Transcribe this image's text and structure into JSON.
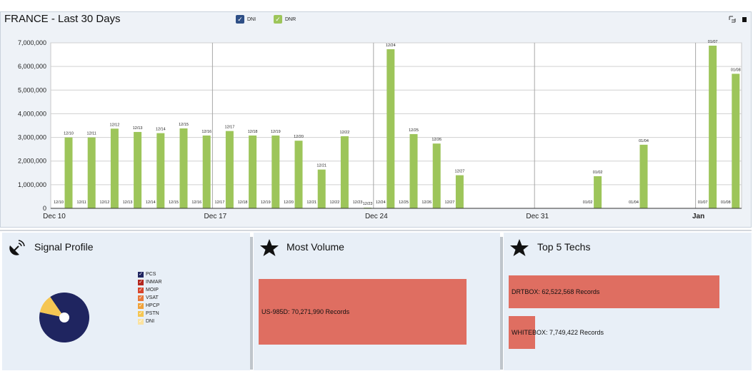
{
  "header": {
    "title": "FRANCE - Last 30 Days",
    "legend": [
      {
        "label": "DNI",
        "color": "#2e4f86",
        "checked": true
      },
      {
        "label": "DNR",
        "color": "#9dc55a",
        "checked": true
      }
    ],
    "tools": [
      {
        "icon": "expand-icon"
      },
      {
        "icon": "stop-icon"
      }
    ]
  },
  "chart_data": {
    "type": "bar",
    "title": "FRANCE - Last 30 Days",
    "series": [
      {
        "name": "DNR",
        "color": "#9dc55a",
        "points": [
          {
            "x": "12/10",
            "y": 3000000
          },
          {
            "x": "12/11",
            "y": 3000000
          },
          {
            "x": "12/12",
            "y": 3370000
          },
          {
            "x": "12/13",
            "y": 3230000
          },
          {
            "x": "12/14",
            "y": 3180000
          },
          {
            "x": "12/15",
            "y": 3380000
          },
          {
            "x": "12/16",
            "y": 3080000
          },
          {
            "x": "12/17",
            "y": 3270000
          },
          {
            "x": "12/18",
            "y": 3080000
          },
          {
            "x": "12/19",
            "y": 3080000
          },
          {
            "x": "12/20",
            "y": 2860000
          },
          {
            "x": "12/21",
            "y": 1640000
          },
          {
            "x": "12/22",
            "y": 3050000
          },
          {
            "x": "12/23",
            "y": 30000
          },
          {
            "x": "12/24",
            "y": 6730000
          },
          {
            "x": "12/25",
            "y": 3140000
          },
          {
            "x": "12/26",
            "y": 2740000
          },
          {
            "x": "12/27",
            "y": 1400000
          },
          {
            "x": "01/02",
            "y": 1360000
          },
          {
            "x": "01/04",
            "y": 2690000
          },
          {
            "x": "01/07",
            "y": 6880000
          },
          {
            "x": "01/08",
            "y": 5690000
          }
        ]
      }
    ],
    "ylim": [
      0,
      7000000
    ],
    "yticks": [
      "0",
      "1,000,000",
      "2,000,000",
      "3,000,000",
      "4,000,000",
      "5,000,000",
      "6,000,000",
      "7,000,000"
    ],
    "xaxis_labels": [
      {
        "label": "Dec 10",
        "date": "12/10",
        "bold": false
      },
      {
        "label": "Dec 17",
        "date": "12/17",
        "bold": false
      },
      {
        "label": "Dec 24",
        "date": "12/24",
        "bold": false
      },
      {
        "label": "Dec 31",
        "date": "12/31",
        "bold": false
      },
      {
        "label": "Jan",
        "date": "01/07",
        "bold": true
      }
    ],
    "week_lines": [
      "12/17",
      "12/24",
      "12/31",
      "01/07"
    ],
    "day_order": [
      "12/10",
      "12/11",
      "12/12",
      "12/13",
      "12/14",
      "12/15",
      "12/16",
      "12/17",
      "12/18",
      "12/19",
      "12/20",
      "12/21",
      "12/22",
      "12/23",
      "12/24",
      "12/25",
      "12/26",
      "12/27",
      "12/28",
      "12/29",
      "12/30",
      "12/31",
      "01/01",
      "01/02",
      "01/03",
      "01/04",
      "01/05",
      "01/06",
      "01/07",
      "01/08"
    ],
    "grid": true
  },
  "signal_profile": {
    "title": "Signal Profile",
    "icon": "satellite-dish-icon",
    "legend": [
      {
        "label": "PCS",
        "color": "#1f2560"
      },
      {
        "label": "INMAR",
        "color": "#b3261e"
      },
      {
        "label": "MOIP",
        "color": "#d8452c"
      },
      {
        "label": "VSAT",
        "color": "#e8783a"
      },
      {
        "label": "HPCP",
        "color": "#f0a23a"
      },
      {
        "label": "PSTN",
        "color": "#f5c653"
      },
      {
        "label": "DNI",
        "color": "#fbe3a1"
      }
    ],
    "pie": [
      {
        "label": "PCS",
        "value": 0.88,
        "color": "#1f2560"
      },
      {
        "label": "PSTN",
        "value": 0.12,
        "color": "#f5c653"
      }
    ]
  },
  "most_volume": {
    "title": "Most Volume",
    "icon": "star-icon",
    "bars": [
      {
        "label": "US-985D: 70,271,990 Records",
        "value": 70271990
      }
    ]
  },
  "top_techs": {
    "title": "Top 5 Techs",
    "icon": "star-icon",
    "bars": [
      {
        "label": "DRTBOX: 62,522,568 Records",
        "value": 62522568
      },
      {
        "label": "WHITEBOX: 7,749,422 Records",
        "value": 7749422
      }
    ]
  },
  "colors": {
    "bar": "#9dc55a",
    "hbar": "#df6e61",
    "panel": "#e8eff7"
  }
}
